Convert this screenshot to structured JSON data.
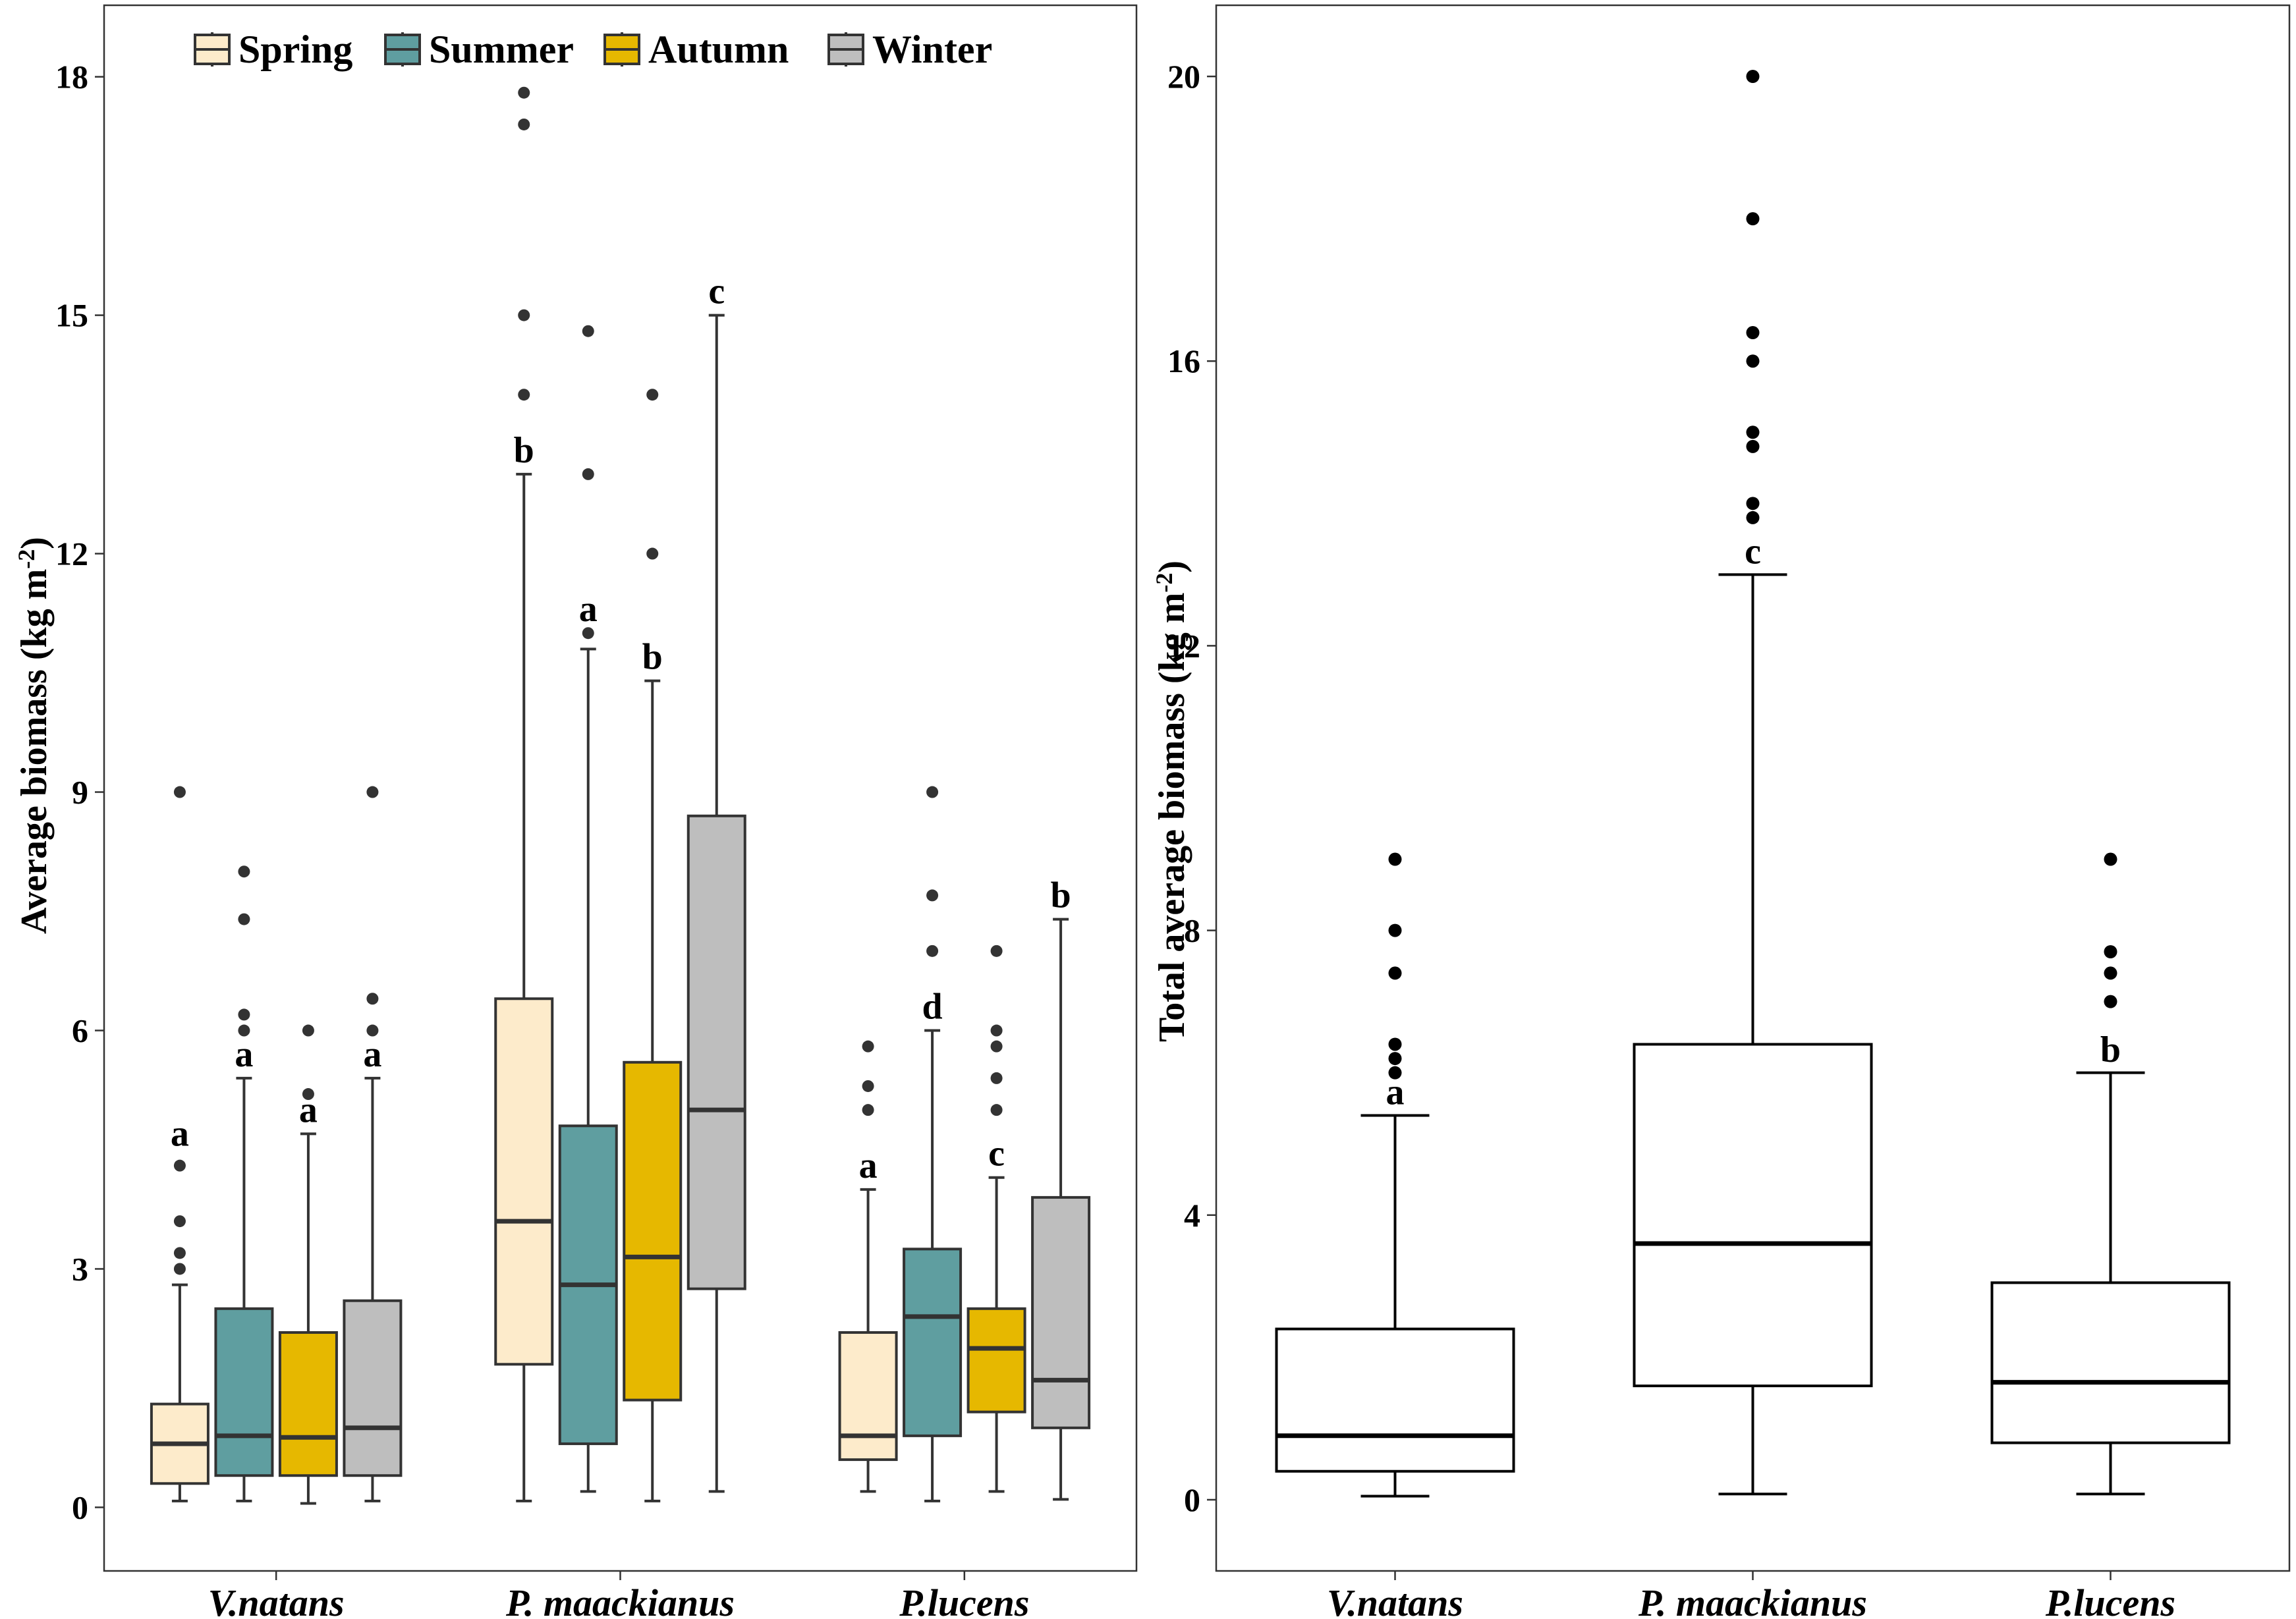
{
  "chart_data": [
    {
      "type": "box",
      "panel": "left",
      "ylabel": "Average biomass (kg m⁻²)",
      "ylabel_main": "Average biomass (kg m",
      "ylabel_sup": "-2",
      "ylabel_close": ")",
      "ylim": [
        -0.8,
        18.9
      ],
      "yticks": [
        0,
        3,
        6,
        9,
        12,
        15,
        18
      ],
      "grid": false,
      "legend_position": "top-left",
      "categories": [
        "V.natans",
        "P. maackianus",
        "P.lucens"
      ],
      "series": [
        {
          "name": "Spring",
          "color": "#FDEBCB",
          "boxes": [
            {
              "min": 0.08,
              "q1": 0.3,
              "median": 0.8,
              "q3": 1.3,
              "max": 2.8,
              "outliers": [
                3.0,
                3.2,
                3.6,
                4.3,
                9.0
              ],
              "label": "a",
              "label_y": 4.5
            },
            {
              "min": 0.08,
              "q1": 1.8,
              "median": 3.6,
              "q3": 6.4,
              "max": 13.0,
              "outliers": [
                14.0,
                15.0,
                17.4,
                17.8
              ],
              "label": "b",
              "label_y": 13.1
            },
            {
              "min": 0.2,
              "q1": 0.6,
              "median": 0.9,
              "q3": 2.2,
              "max": 4.0,
              "outliers": [
                5.0,
                5.3,
                5.8
              ],
              "label": "a",
              "label_y": 4.1
            }
          ]
        },
        {
          "name": "Summer",
          "color": "#5F9EA0",
          "boxes": [
            {
              "min": 0.08,
              "q1": 0.4,
              "median": 0.9,
              "q3": 2.5,
              "max": 5.4,
              "outliers": [
                6.0,
                6.2,
                7.4,
                8.0
              ],
              "label": "a",
              "label_y": 5.5
            },
            {
              "min": 0.2,
              "q1": 0.8,
              "median": 2.8,
              "q3": 4.8,
              "max": 10.8,
              "outliers": [
                11.0,
                13.0,
                14.8
              ],
              "label": "a",
              "label_y": 11.1
            },
            {
              "min": 0.08,
              "q1": 0.9,
              "median": 2.4,
              "q3": 3.25,
              "max": 6.0,
              "outliers": [
                7.0,
                7.7,
                9.0
              ],
              "label": "d",
              "label_y": 6.1
            }
          ]
        },
        {
          "name": "Autumn",
          "color": "#E6B800",
          "boxes": [
            {
              "min": 0.05,
              "q1": 0.4,
              "median": 0.88,
              "q3": 2.2,
              "max": 4.7,
              "outliers": [
                5.2,
                6.0
              ],
              "label": "a",
              "label_y": 4.8
            },
            {
              "min": 0.08,
              "q1": 1.35,
              "median": 3.15,
              "q3": 5.6,
              "max": 10.4,
              "outliers": [
                12.0,
                14.0
              ],
              "label": "b",
              "label_y": 10.5
            },
            {
              "min": 0.2,
              "q1": 1.2,
              "median": 2.0,
              "q3": 2.5,
              "max": 4.15,
              "outliers": [
                5.0,
                5.4,
                5.8,
                6.0,
                7.0
              ],
              "label": "c",
              "label_y": 4.25
            }
          ]
        },
        {
          "name": "Winter",
          "color": "#BEBEBE",
          "boxes": [
            {
              "min": 0.08,
              "q1": 0.4,
              "median": 1.0,
              "q3": 2.6,
              "max": 5.4,
              "outliers": [
                6.0,
                6.4,
                9.0
              ],
              "label": "a",
              "label_y": 5.5
            },
            {
              "min": 0.2,
              "q1": 2.75,
              "median": 5.0,
              "q3": 8.7,
              "max": 15.0,
              "outliers": [],
              "label": "c",
              "label_y": 15.1
            },
            {
              "min": 0.1,
              "q1": 1.0,
              "median": 1.6,
              "q3": 3.9,
              "max": 7.4,
              "outliers": [],
              "label": "b",
              "label_y": 7.5
            }
          ]
        }
      ]
    },
    {
      "type": "box",
      "panel": "right",
      "ylabel": "Total average biomass (kg m⁻²)",
      "ylabel_main": "Total average biomass (kg m",
      "ylabel_sup": "-2",
      "ylabel_close": ")",
      "ylim": [
        -1.0,
        21.0
      ],
      "yticks": [
        0,
        4,
        8,
        12,
        16,
        20
      ],
      "grid": false,
      "categories": [
        "V.natans",
        "P. maackianus",
        "P.lucens"
      ],
      "boxes": [
        {
          "min": 0.05,
          "q1": 0.4,
          "median": 0.9,
          "q3": 2.4,
          "max": 5.4,
          "outliers": [
            6.0,
            6.2,
            6.4,
            7.4,
            8.0,
            9.0
          ],
          "label": "a",
          "label_y": 5.5
        },
        {
          "min": 0.08,
          "q1": 1.6,
          "median": 3.6,
          "q3": 6.4,
          "max": 13.0,
          "outliers": [
            13.8,
            14.0,
            14.8,
            15.0,
            16.0,
            16.4,
            18.0,
            20.0
          ],
          "label": "c",
          "label_y": 13.1
        },
        {
          "min": 0.08,
          "q1": 0.8,
          "median": 1.65,
          "q3": 3.05,
          "max": 6.0,
          "outliers": [
            7.0,
            7.4,
            7.7,
            9.0
          ],
          "label": "b",
          "label_y": 6.1
        }
      ]
    }
  ]
}
